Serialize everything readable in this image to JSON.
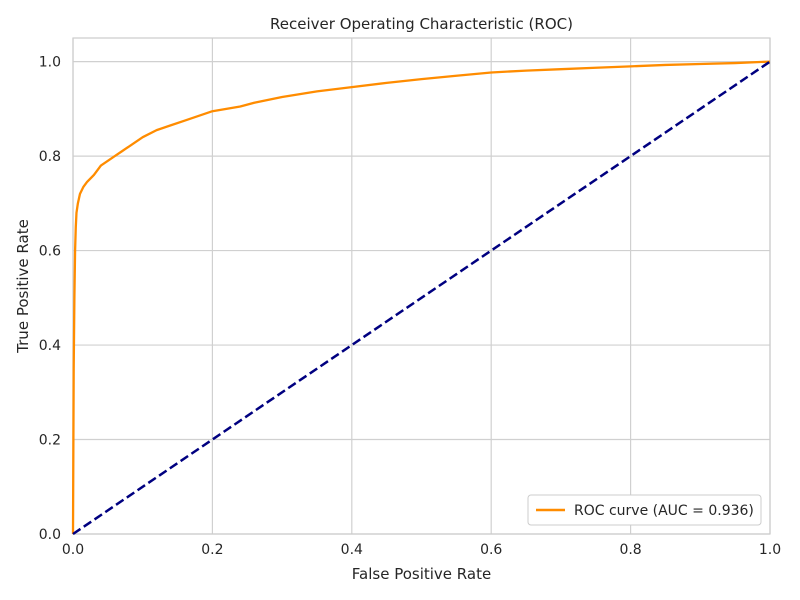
{
  "chart_data": {
    "type": "line",
    "title": "Receiver Operating Characteristic (ROC)",
    "xlabel": "False Positive Rate",
    "ylabel": "True Positive Rate",
    "xlim": [
      0.0,
      1.0
    ],
    "ylim": [
      0.0,
      1.05
    ],
    "x_ticks": [
      0.0,
      0.2,
      0.4,
      0.6,
      0.8,
      1.0
    ],
    "x_tick_labels": [
      "0.0",
      "0.2",
      "0.4",
      "0.6",
      "0.8",
      "1.0"
    ],
    "y_ticks": [
      0.0,
      0.2,
      0.4,
      0.6,
      0.8,
      1.0
    ],
    "y_tick_labels": [
      "0.0",
      "0.2",
      "0.4",
      "0.6",
      "0.8",
      "1.0"
    ],
    "grid": true,
    "legend_position": "lower-right",
    "series": [
      {
        "name": "ROC curve (AUC = 0.936)",
        "color": "#ff8c00",
        "style": "solid",
        "x": [
          0.0,
          0.001,
          0.002,
          0.003,
          0.004,
          0.005,
          0.007,
          0.01,
          0.015,
          0.02,
          0.03,
          0.04,
          0.05,
          0.06,
          0.07,
          0.08,
          0.09,
          0.1,
          0.12,
          0.14,
          0.16,
          0.18,
          0.2,
          0.24,
          0.26,
          0.3,
          0.35,
          0.4,
          0.45,
          0.5,
          0.55,
          0.6,
          0.65,
          0.7,
          0.75,
          0.8,
          0.85,
          0.9,
          0.95,
          1.0
        ],
        "y": [
          0.0,
          0.35,
          0.5,
          0.6,
          0.65,
          0.68,
          0.7,
          0.72,
          0.735,
          0.745,
          0.76,
          0.78,
          0.79,
          0.8,
          0.81,
          0.82,
          0.83,
          0.84,
          0.855,
          0.865,
          0.875,
          0.885,
          0.895,
          0.905,
          0.913,
          0.925,
          0.937,
          0.946,
          0.955,
          0.963,
          0.97,
          0.977,
          0.981,
          0.984,
          0.987,
          0.99,
          0.993,
          0.995,
          0.997,
          1.0
        ]
      },
      {
        "name": "",
        "color": "#000080",
        "style": "dashed",
        "x": [
          0.0,
          1.0
        ],
        "y": [
          0.0,
          1.0
        ]
      }
    ]
  }
}
